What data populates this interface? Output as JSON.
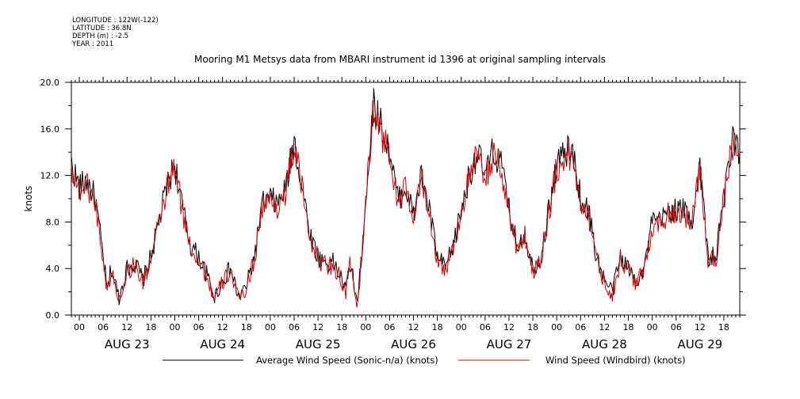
{
  "header": {
    "meta": [
      "LONGITUDE : 122W(-122)",
      "LATITUDE : 36.8N",
      "DEPTH (m) : -2.5",
      "YEAR : 2011"
    ],
    "title": "Mooring M1 Metsys data from MBARI instrument id 1396 at original sampling intervals"
  },
  "chart_data": {
    "type": "line",
    "ylabel": "knots",
    "ylim": [
      0,
      20
    ],
    "yticks": [
      "0.0",
      "4.0",
      "8.0",
      "12.0",
      "16.0",
      "20.0"
    ],
    "xlim_hours": [
      -2,
      166
    ],
    "hour_labels": [
      "00",
      "06",
      "12",
      "18",
      "00",
      "06",
      "12",
      "18",
      "00",
      "06",
      "12",
      "18",
      "00",
      "06",
      "12",
      "18",
      "00",
      "06",
      "12",
      "18",
      "00",
      "06",
      "12",
      "18",
      "00",
      "06",
      "12",
      "18"
    ],
    "days": [
      "AUG 23",
      "AUG 24",
      "AUG 25",
      "AUG 26",
      "AUG 27",
      "AUG 28",
      "AUG 29"
    ],
    "series": [
      {
        "name": "Average Wind Speed (Sonic-n/a) (knots)",
        "color": "#000000",
        "x_hours": [
          -2,
          0,
          2,
          4,
          6,
          7,
          8,
          10,
          12,
          14,
          16,
          18,
          20,
          22,
          24,
          26,
          28,
          30,
          32,
          34,
          36,
          38,
          40,
          42,
          44,
          46,
          48,
          50,
          52,
          54,
          56,
          58,
          60,
          62,
          64,
          66,
          67,
          68,
          70,
          72,
          74,
          76,
          78,
          80,
          82,
          84,
          86,
          88,
          90,
          92,
          94,
          96,
          98,
          100,
          102,
          104,
          106,
          108,
          110,
          112,
          114,
          116,
          118,
          120,
          122,
          124,
          126,
          128,
          130,
          132,
          134,
          136,
          138,
          140,
          142,
          144,
          146,
          148,
          150,
          152,
          154,
          156,
          158,
          160,
          162,
          164,
          166
        ],
        "values": [
          13,
          11,
          11.5,
          10,
          5,
          2,
          4,
          1.5,
          4,
          4.5,
          3,
          5,
          8,
          11,
          13,
          9,
          6,
          5,
          3.5,
          1.5,
          3,
          4,
          1.5,
          2.5,
          5,
          9.5,
          10,
          9.5,
          11,
          15,
          11,
          7,
          5,
          4.5,
          4.5,
          3,
          2,
          4.5,
          1,
          10,
          18.5,
          16,
          14,
          10,
          11,
          8.5,
          12,
          9,
          5,
          4,
          6,
          9,
          12,
          14,
          12,
          14,
          13,
          9,
          6,
          7,
          4,
          5,
          9,
          13,
          14,
          14,
          10,
          9,
          5,
          3,
          2,
          5,
          4,
          3,
          4,
          8,
          8,
          9,
          9,
          9,
          8,
          13,
          5,
          5,
          10,
          15,
          14
        ]
      },
      {
        "name": "Wind Speed (Windbird) (knots)",
        "color": "#dd0000",
        "x_hours": [
          -2,
          0,
          2,
          4,
          6,
          7,
          8,
          10,
          12,
          14,
          16,
          18,
          20,
          22,
          24,
          26,
          28,
          30,
          32,
          34,
          36,
          38,
          40,
          42,
          44,
          46,
          48,
          50,
          52,
          54,
          56,
          58,
          60,
          62,
          64,
          66,
          67,
          68,
          70,
          72,
          74,
          76,
          78,
          80,
          82,
          84,
          86,
          88,
          90,
          92,
          94,
          96,
          98,
          100,
          102,
          104,
          106,
          108,
          110,
          112,
          114,
          116,
          118,
          120,
          122,
          124,
          126,
          128,
          130,
          132,
          134,
          136,
          138,
          140,
          142,
          144,
          146,
          148,
          150,
          152,
          154,
          156,
          158,
          160,
          162,
          164,
          166
        ],
        "values": [
          12.8,
          10.8,
          11.2,
          9.7,
          4.8,
          1.8,
          3.8,
          1.3,
          3.8,
          4.3,
          2.8,
          4.8,
          7.8,
          10.8,
          12.7,
          8.8,
          5.8,
          4.8,
          3.3,
          1.3,
          2.8,
          3.8,
          1.3,
          2.3,
          4.8,
          9.3,
          9.8,
          9.3,
          10.8,
          14.7,
          10.8,
          6.8,
          4.8,
          4.3,
          4.3,
          2.8,
          1.8,
          4.3,
          0.8,
          9.8,
          18,
          15.6,
          13.6,
          9.8,
          10.8,
          8.3,
          11.7,
          8.8,
          4.8,
          3.8,
          5.8,
          8.8,
          11.7,
          13.6,
          11.7,
          13.6,
          12.6,
          8.8,
          5.8,
          6.8,
          3.8,
          4.8,
          8.8,
          12.6,
          13.6,
          13.6,
          9.8,
          8.8,
          4.8,
          2.8,
          1.8,
          4.8,
          3.8,
          2.8,
          3.8,
          7.8,
          7.8,
          8.8,
          8.8,
          8.8,
          7.8,
          12.6,
          4.8,
          4.8,
          9.8,
          14.6,
          13.6
        ]
      }
    ],
    "legend": [
      "Average Wind Speed (Sonic-n/a) (knots)",
      "Wind Speed (Windbird) (knots)"
    ]
  }
}
